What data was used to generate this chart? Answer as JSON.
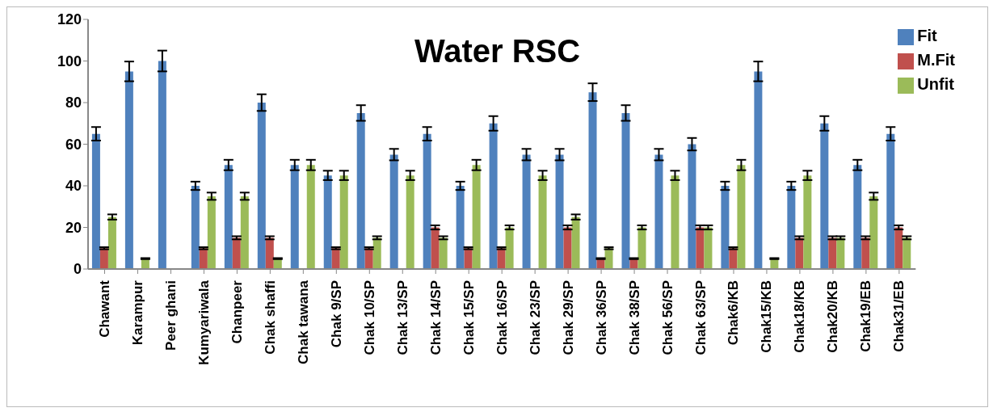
{
  "chart_data": {
    "type": "bar",
    "title": "Water RSC",
    "categories": [
      "Chawant",
      "Karampur",
      "Peer ghani",
      "Kumyariwala",
      "Chanpeer",
      "Chak shaffi",
      "Chak tawana",
      "Chak 9/SP",
      "Chak 10/SP",
      "Chak 13/SP",
      "Chak 14/SP",
      "Chak 15/SP",
      "Chak 16/SP",
      "Chak 23/SP",
      "Chak 29/SP",
      "Chak 36/SP",
      "Chak 38/SP",
      "Chak 56/SP",
      "Chak 63/SP",
      "Chak6/KB",
      "Chak15/KB",
      "Chak18/KB",
      "Chak20/KB",
      "Chak19/EB",
      "Chak31/EB"
    ],
    "series": [
      {
        "name": "Fit",
        "color": "#4f81bd",
        "values": [
          65,
          95,
          100,
          40,
          50,
          80,
          50,
          45,
          75,
          55,
          65,
          40,
          70,
          55,
          55,
          85,
          75,
          55,
          60,
          40,
          95,
          40,
          70,
          50,
          65
        ],
        "errors": [
          3.25,
          4.75,
          5,
          2,
          2.5,
          4,
          2.5,
          2.25,
          3.75,
          2.75,
          3.25,
          2,
          3.5,
          2.75,
          2.75,
          4.25,
          3.75,
          2.75,
          3,
          2,
          4.75,
          2,
          3.5,
          2.5,
          3.25
        ]
      },
      {
        "name": "M.Fit",
        "color": "#c0504d",
        "values": [
          10,
          0,
          0,
          10,
          15,
          15,
          0,
          10,
          10,
          0,
          20,
          10,
          10,
          0,
          20,
          5,
          5,
          0,
          20,
          10,
          0,
          15,
          15,
          15,
          20
        ],
        "errors": [
          0.5,
          null,
          null,
          0.5,
          0.75,
          0.75,
          null,
          0.5,
          0.5,
          null,
          1,
          0.5,
          0.5,
          null,
          1,
          0.25,
          0.25,
          null,
          1,
          0.5,
          null,
          0.75,
          0.75,
          0.75,
          1
        ]
      },
      {
        "name": "Unfit",
        "color": "#9bbb59",
        "values": [
          25,
          5,
          0,
          35,
          35,
          5,
          50,
          45,
          15,
          45,
          15,
          50,
          20,
          45,
          25,
          10,
          20,
          45,
          20,
          50,
          5,
          45,
          15,
          35,
          15
        ],
        "errors": [
          1.25,
          0.25,
          null,
          1.75,
          1.75,
          0.25,
          2.5,
          2.25,
          0.75,
          2.25,
          0.75,
          2.5,
          1,
          2.25,
          1.25,
          0.5,
          1,
          2.25,
          1,
          2.5,
          0.25,
          2.25,
          0.75,
          1.75,
          0.75
        ]
      }
    ],
    "ylim": [
      0,
      120
    ],
    "yticks": [
      0,
      20,
      40,
      60,
      80,
      100,
      120
    ],
    "legend": "top right"
  }
}
